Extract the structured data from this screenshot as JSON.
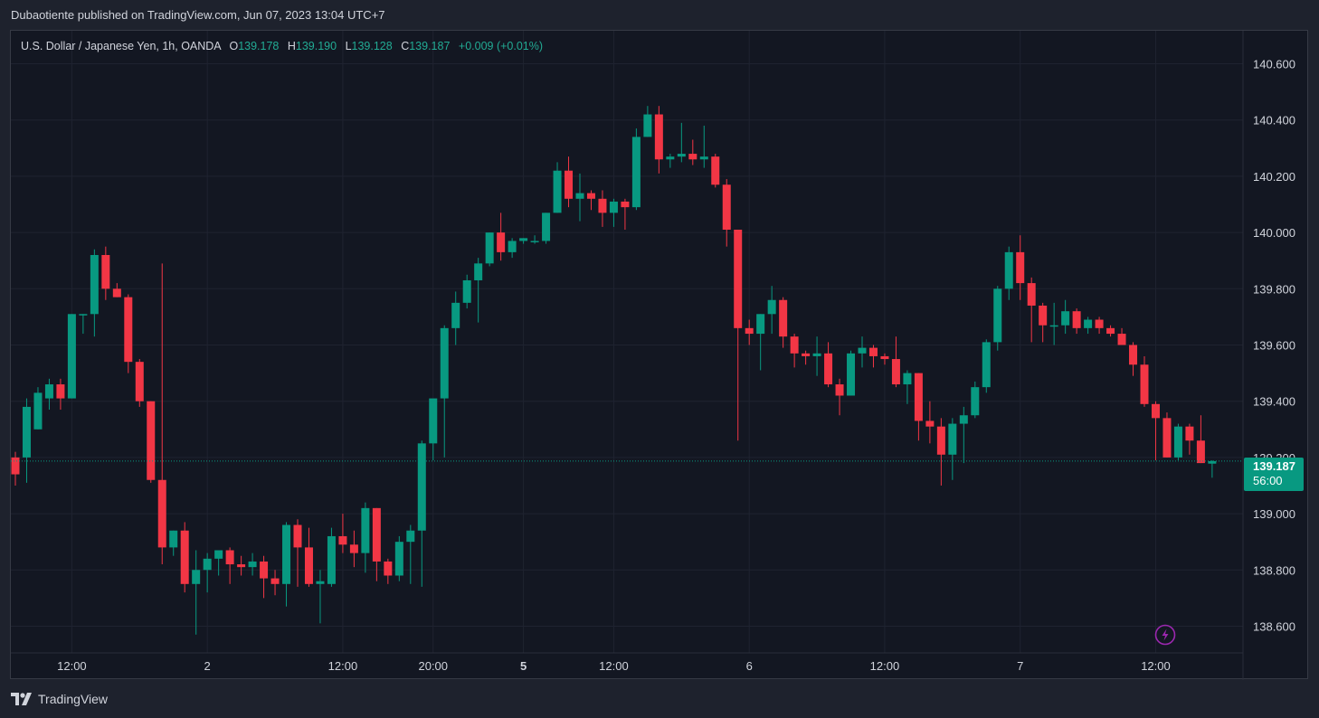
{
  "header": {
    "publisher_line": "Dubaotiente published on TradingView.com, Jun 07, 2023 13:04 UTC+7"
  },
  "legend": {
    "symbol": "U.S. Dollar / Japanese Yen, 1h, OANDA",
    "o_label": "O",
    "o_value": "139.178",
    "h_label": "H",
    "h_value": "139.190",
    "l_label": "L",
    "l_value": "139.128",
    "c_label": "C",
    "c_value": "139.187",
    "change": "+0.009 (+0.01%)"
  },
  "price_tag": {
    "price": "139.187",
    "countdown": "56:00"
  },
  "footer": {
    "brand": "TradingView"
  },
  "colors": {
    "up": "#089981",
    "down": "#f23645",
    "background": "#131722",
    "grid": "#1f2330"
  },
  "chart_data": {
    "type": "candlestick",
    "symbol": "USDJPY",
    "interval": "1h",
    "ylim": [
      138.55,
      140.65
    ],
    "y_ticks": [
      "140.600",
      "140.400",
      "140.200",
      "140.000",
      "139.800",
      "139.600",
      "139.400",
      "139.200",
      "139.000",
      "138.800",
      "138.600"
    ],
    "x_ticks": [
      {
        "label": "12:00",
        "bar": 5
      },
      {
        "label": "2",
        "bar": 17
      },
      {
        "label": "12:00",
        "bar": 29
      },
      {
        "label": "20:00",
        "bar": 37
      },
      {
        "label": "5",
        "bar": 45
      },
      {
        "label": "12:00",
        "bar": 53
      },
      {
        "label": "6",
        "bar": 65
      },
      {
        "label": "12:00",
        "bar": 77
      },
      {
        "label": "7",
        "bar": 89
      },
      {
        "label": "12:00",
        "bar": 101
      }
    ],
    "last_price": 139.187,
    "candles": [
      [
        139.2,
        139.22,
        139.1,
        139.14
      ],
      [
        139.2,
        139.41,
        139.11,
        139.38
      ],
      [
        139.3,
        139.45,
        139.3,
        139.43
      ],
      [
        139.41,
        139.48,
        139.37,
        139.46
      ],
      [
        139.46,
        139.48,
        139.37,
        139.41
      ],
      [
        139.41,
        139.71,
        139.41,
        139.71
      ],
      [
        139.71,
        139.71,
        139.64,
        139.71
      ],
      [
        139.71,
        139.94,
        139.63,
        139.92
      ],
      [
        139.92,
        139.95,
        139.76,
        139.8
      ],
      [
        139.8,
        139.82,
        139.77,
        139.77
      ],
      [
        139.77,
        139.78,
        139.5,
        139.54
      ],
      [
        139.54,
        139.55,
        139.38,
        139.4
      ],
      [
        139.4,
        139.4,
        139.11,
        139.12
      ],
      [
        139.12,
        139.89,
        138.82,
        138.88
      ],
      [
        138.88,
        138.94,
        138.85,
        138.94
      ],
      [
        138.94,
        138.97,
        138.72,
        138.75
      ],
      [
        138.75,
        138.87,
        138.57,
        138.8
      ],
      [
        138.8,
        138.86,
        138.72,
        138.84
      ],
      [
        138.84,
        138.87,
        138.78,
        138.87
      ],
      [
        138.87,
        138.88,
        138.75,
        138.82
      ],
      [
        138.82,
        138.85,
        138.78,
        138.81
      ],
      [
        138.81,
        138.86,
        138.78,
        138.83
      ],
      [
        138.83,
        138.85,
        138.7,
        138.77
      ],
      [
        138.77,
        138.8,
        138.71,
        138.75
      ],
      [
        138.75,
        138.97,
        138.67,
        138.96
      ],
      [
        138.96,
        138.98,
        138.74,
        138.88
      ],
      [
        138.88,
        138.95,
        138.74,
        138.75
      ],
      [
        138.75,
        138.8,
        138.61,
        138.76
      ],
      [
        138.75,
        138.95,
        138.74,
        138.92
      ],
      [
        138.92,
        139.0,
        138.86,
        138.89
      ],
      [
        138.89,
        138.94,
        138.81,
        138.86
      ],
      [
        138.86,
        139.04,
        138.79,
        139.02
      ],
      [
        139.02,
        139.02,
        138.76,
        138.83
      ],
      [
        138.83,
        138.84,
        138.75,
        138.78
      ],
      [
        138.78,
        138.92,
        138.76,
        138.9
      ],
      [
        138.9,
        138.96,
        138.75,
        138.94
      ],
      [
        138.94,
        139.26,
        138.74,
        139.25
      ],
      [
        139.25,
        139.4,
        139.19,
        139.41
      ],
      [
        139.41,
        139.67,
        139.2,
        139.66
      ],
      [
        139.66,
        139.79,
        139.6,
        139.75
      ],
      [
        139.75,
        139.85,
        139.73,
        139.83
      ],
      [
        139.83,
        139.91,
        139.68,
        139.89
      ],
      [
        139.89,
        140.0,
        139.88,
        140.0
      ],
      [
        140.0,
        140.07,
        139.9,
        139.93
      ],
      [
        139.93,
        139.98,
        139.91,
        139.97
      ],
      [
        139.97,
        139.98,
        139.96,
        139.98
      ],
      [
        139.97,
        139.99,
        139.96,
        139.97
      ],
      [
        139.97,
        140.07,
        139.96,
        140.07
      ],
      [
        140.07,
        140.25,
        140.07,
        140.22
      ],
      [
        140.22,
        140.27,
        140.09,
        140.12
      ],
      [
        140.12,
        140.21,
        140.04,
        140.14
      ],
      [
        140.14,
        140.15,
        140.08,
        140.12
      ],
      [
        140.12,
        140.15,
        140.02,
        140.07
      ],
      [
        140.07,
        140.12,
        140.02,
        140.11
      ],
      [
        140.11,
        140.12,
        140.01,
        140.09
      ],
      [
        140.09,
        140.37,
        140.08,
        140.34
      ],
      [
        140.34,
        140.45,
        140.34,
        140.42
      ],
      [
        140.42,
        140.45,
        140.21,
        140.26
      ],
      [
        140.26,
        140.28,
        140.23,
        140.27
      ],
      [
        140.27,
        140.39,
        140.25,
        140.28
      ],
      [
        140.28,
        140.33,
        140.24,
        140.26
      ],
      [
        140.26,
        140.38,
        140.23,
        140.27
      ],
      [
        140.27,
        140.28,
        140.16,
        140.17
      ],
      [
        140.17,
        140.19,
        139.95,
        140.01
      ],
      [
        140.01,
        140.01,
        139.26,
        139.66
      ],
      [
        139.66,
        139.69,
        139.6,
        139.64
      ],
      [
        139.64,
        139.71,
        139.51,
        139.71
      ],
      [
        139.71,
        139.81,
        139.64,
        139.76
      ],
      [
        139.76,
        139.77,
        139.59,
        139.63
      ],
      [
        139.63,
        139.64,
        139.52,
        139.57
      ],
      [
        139.57,
        139.58,
        139.53,
        139.56
      ],
      [
        139.56,
        139.63,
        139.49,
        139.57
      ],
      [
        139.57,
        139.61,
        139.45,
        139.46
      ],
      [
        139.46,
        139.48,
        139.35,
        139.42
      ],
      [
        139.42,
        139.58,
        139.42,
        139.57
      ],
      [
        139.57,
        139.63,
        139.52,
        139.59
      ],
      [
        139.59,
        139.6,
        139.52,
        139.56
      ],
      [
        139.56,
        139.57,
        139.53,
        139.55
      ],
      [
        139.55,
        139.63,
        139.45,
        139.46
      ],
      [
        139.46,
        139.51,
        139.39,
        139.5
      ],
      [
        139.5,
        139.5,
        139.26,
        139.33
      ],
      [
        139.33,
        139.4,
        139.25,
        139.31
      ],
      [
        139.31,
        139.34,
        139.1,
        139.21
      ],
      [
        139.21,
        139.34,
        139.12,
        139.32
      ],
      [
        139.32,
        139.38,
        139.18,
        139.35
      ],
      [
        139.35,
        139.47,
        139.34,
        139.45
      ],
      [
        139.45,
        139.62,
        139.43,
        139.61
      ],
      [
        139.61,
        139.81,
        139.58,
        139.8
      ],
      [
        139.8,
        139.95,
        139.76,
        139.93
      ],
      [
        139.93,
        139.99,
        139.76,
        139.82
      ],
      [
        139.82,
        139.84,
        139.61,
        139.74
      ],
      [
        139.74,
        139.75,
        139.61,
        139.67
      ],
      [
        139.67,
        139.75,
        139.6,
        139.67
      ],
      [
        139.67,
        139.76,
        139.64,
        139.72
      ],
      [
        139.72,
        139.73,
        139.64,
        139.66
      ],
      [
        139.66,
        139.7,
        139.64,
        139.69
      ],
      [
        139.69,
        139.7,
        139.64,
        139.66
      ],
      [
        139.66,
        139.67,
        139.63,
        139.64
      ],
      [
        139.64,
        139.66,
        139.6,
        139.6
      ],
      [
        139.6,
        139.61,
        139.49,
        139.53
      ],
      [
        139.53,
        139.56,
        139.38,
        139.39
      ],
      [
        139.39,
        139.4,
        139.19,
        139.34
      ],
      [
        139.34,
        139.36,
        139.2,
        139.2
      ],
      [
        139.2,
        139.32,
        139.19,
        139.31
      ],
      [
        139.31,
        139.32,
        139.21,
        139.26
      ],
      [
        139.26,
        139.35,
        139.18,
        139.18
      ],
      [
        139.178,
        139.19,
        139.128,
        139.187
      ]
    ]
  }
}
